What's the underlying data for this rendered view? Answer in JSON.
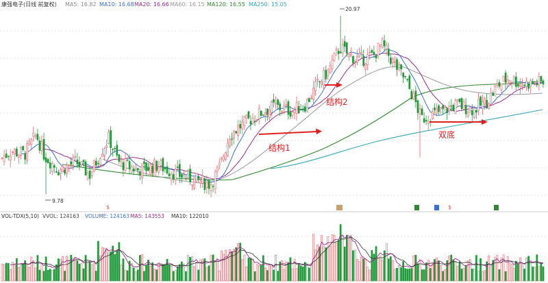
{
  "header": {
    "name": "康强电子(日线 前复权)",
    "ma": [
      {
        "label": "MA5: 16.82",
        "color": "#888888"
      },
      {
        "label": "MA10: 16.68",
        "color": "#3a6fd0"
      },
      {
        "label": "MA20: 16.66",
        "color": "#9a2c8f"
      },
      {
        "label": "MA60: 16.15",
        "color": "#999999"
      },
      {
        "label": "MA120: 16.55",
        "color": "#2f8a2f"
      },
      {
        "label": "MA250: 15.05",
        "color": "#35a6b8"
      }
    ]
  },
  "vol_header": {
    "name": "VOL-TDX(5,10)",
    "items": [
      {
        "label": "VVOL: 124163",
        "color": "#444444"
      },
      {
        "label": "VOLUME: 124163",
        "color": "#3a6fd0"
      },
      {
        "label": "MA5: 143553",
        "color": "#9a2c8f"
      },
      {
        "label": "MA10: 122010",
        "color": "#333333"
      }
    ]
  },
  "annotations": [
    {
      "text": "结构1",
      "color": "#e02020"
    },
    {
      "text": "结构2",
      "color": "#e02020"
    },
    {
      "text": "双底",
      "color": "#e02020"
    }
  ],
  "markers": [
    {
      "text": "20.97",
      "kind": "high"
    },
    {
      "text": "9.78",
      "kind": "low"
    }
  ],
  "colors": {
    "up": "#e6616b",
    "down": "#1f9a3a"
  },
  "chart_data": {
    "type": "candlestick",
    "price_range": [
      9.2,
      21.4
    ],
    "close_path": [
      [
        0,
        12.0
      ],
      [
        15,
        12.5
      ],
      [
        35,
        12.3
      ],
      [
        52,
        13.5
      ],
      [
        64,
        12.2
      ],
      [
        85,
        11.3
      ],
      [
        110,
        11.8
      ],
      [
        130,
        11.0
      ],
      [
        148,
        12.6
      ],
      [
        158,
        13.3
      ],
      [
        172,
        11.8
      ],
      [
        200,
        11.3
      ],
      [
        230,
        11.6
      ],
      [
        260,
        11.0
      ],
      [
        290,
        10.6
      ],
      [
        306,
        10.4
      ],
      [
        320,
        11.5
      ],
      [
        334,
        13.5
      ],
      [
        348,
        14.0
      ],
      [
        365,
        14.5
      ],
      [
        380,
        14.9
      ],
      [
        400,
        15.3
      ],
      [
        425,
        15.0
      ],
      [
        445,
        15.4
      ],
      [
        460,
        16.5
      ],
      [
        478,
        17.5
      ],
      [
        495,
        19.0
      ],
      [
        508,
        18.5
      ],
      [
        525,
        18.2
      ],
      [
        545,
        18.5
      ],
      [
        556,
        19.2
      ],
      [
        575,
        17.9
      ],
      [
        590,
        17.0
      ],
      [
        605,
        15.6
      ],
      [
        614,
        14.5
      ],
      [
        625,
        14.7
      ],
      [
        645,
        15.0
      ],
      [
        665,
        15.4
      ],
      [
        690,
        15.1
      ],
      [
        710,
        15.6
      ],
      [
        726,
        16.6
      ],
      [
        742,
        17.1
      ],
      [
        760,
        16.7
      ],
      [
        792,
        16.8
      ]
    ]
  }
}
